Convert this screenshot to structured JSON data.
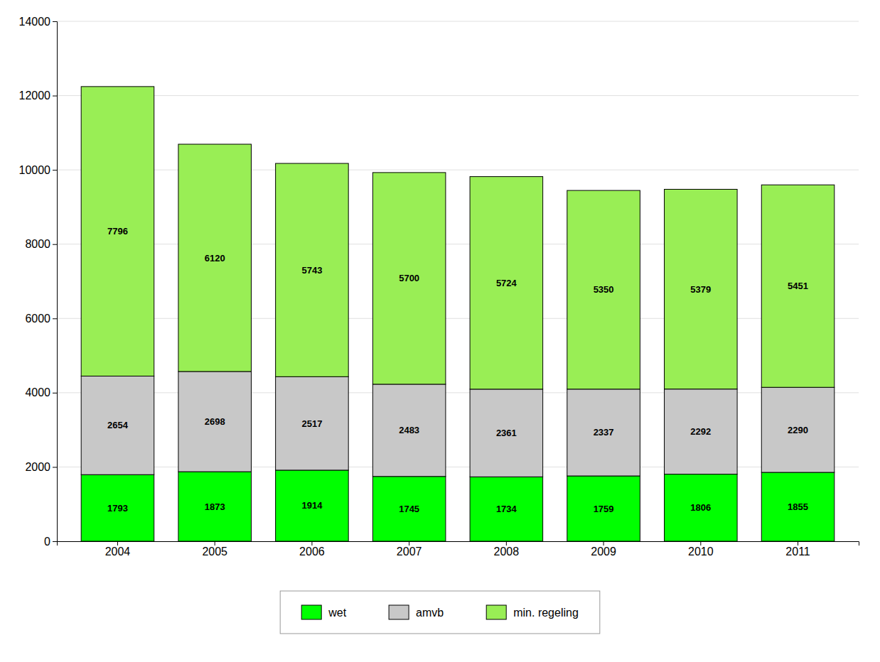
{
  "chart_data": {
    "type": "bar",
    "stacked": true,
    "categories": [
      "2004",
      "2005",
      "2006",
      "2007",
      "2008",
      "2009",
      "2010",
      "2011"
    ],
    "series": [
      {
        "name": "wet",
        "color": "#00FF00",
        "values": [
          1793,
          1873,
          1914,
          1745,
          1734,
          1759,
          1806,
          1855
        ]
      },
      {
        "name": "amvb",
        "color": "#C8C8C8",
        "values": [
          2654,
          2698,
          2517,
          2483,
          2361,
          2337,
          2292,
          2290
        ]
      },
      {
        "name": "min. regeling",
        "color": "#99EE55",
        "values": [
          7796,
          6120,
          5743,
          5700,
          5724,
          5350,
          5379,
          5451
        ]
      }
    ],
    "ylim": [
      0,
      14000
    ],
    "yticks": [
      0,
      2000,
      4000,
      6000,
      8000,
      10000,
      12000,
      14000
    ],
    "grid": true,
    "data_labels": true,
    "legend": "bottom"
  }
}
